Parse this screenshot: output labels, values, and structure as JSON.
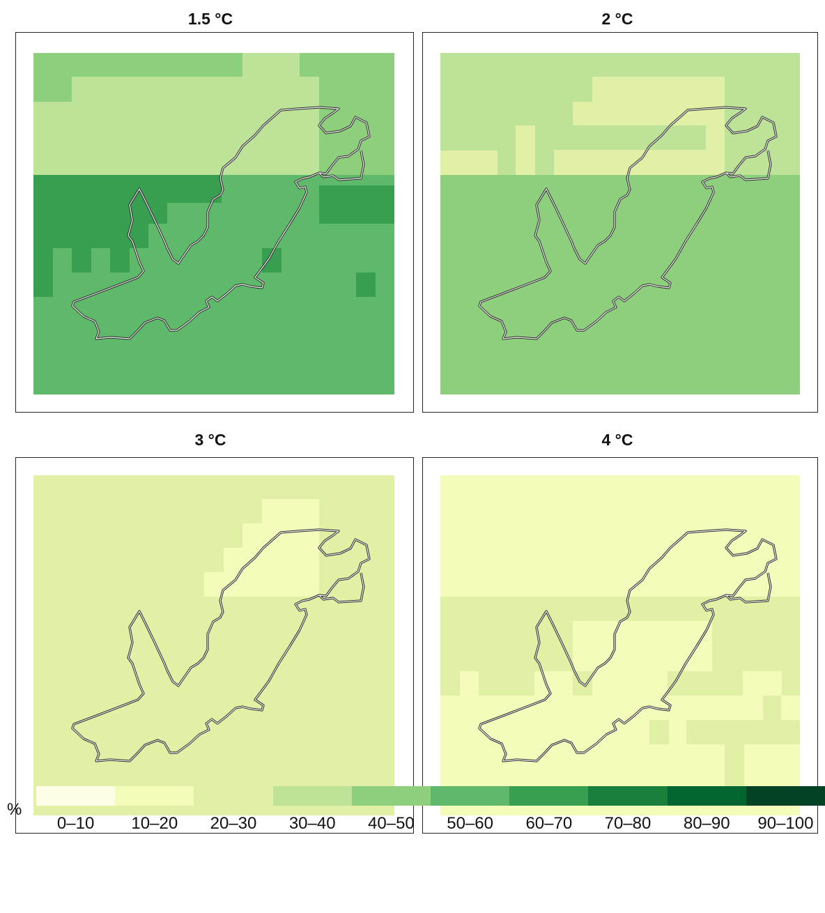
{
  "panels": [
    {
      "title": "1.5 °C",
      "pattern": "p15"
    },
    {
      "title": "2 °C",
      "pattern": "p2"
    },
    {
      "title": "3 °C",
      "pattern": "p3"
    },
    {
      "title": "4 °C",
      "pattern": "p4"
    }
  ],
  "legend": {
    "unit": "%",
    "bins": [
      {
        "label": "0–10",
        "color": "#fefee4"
      },
      {
        "label": "10–20",
        "color": "#f5fbba"
      },
      {
        "label": "20–30",
        "color": "#e0f1a6"
      },
      {
        "label": "30–40",
        "color": "#bce397"
      },
      {
        "label": "40–50",
        "color": "#8ecf7e"
      },
      {
        "label": "50–60",
        "color": "#5fb96a"
      },
      {
        "label": "60–70",
        "color": "#389e50"
      },
      {
        "label": "70–80",
        "color": "#1b7f3c"
      },
      {
        "label": "80–90",
        "color": "#006531"
      },
      {
        "label": "90–100",
        "color": "#044225"
      }
    ]
  }
}
